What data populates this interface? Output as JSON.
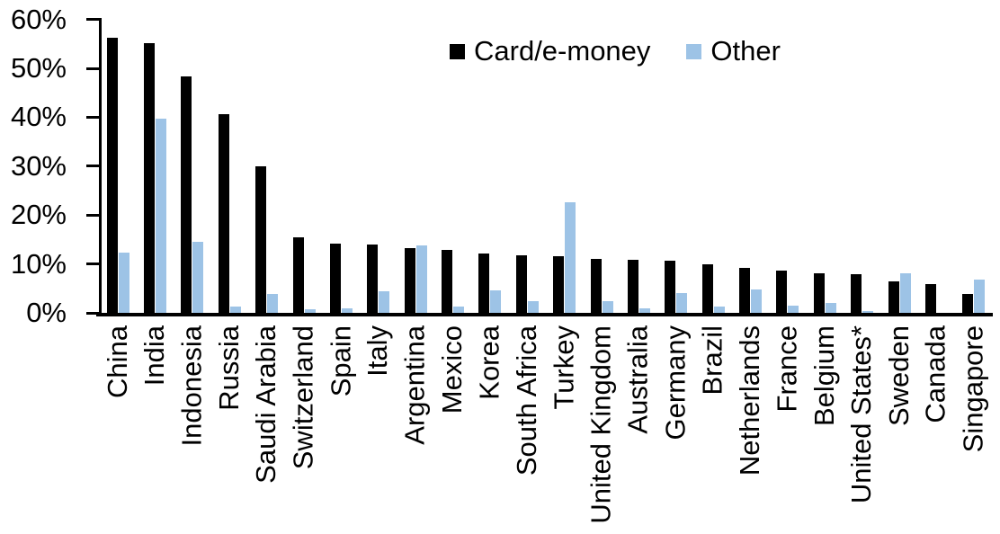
{
  "chart_data": {
    "type": "bar",
    "title": "",
    "xlabel": "",
    "ylabel": "",
    "ylim": [
      0,
      60
    ],
    "ytick_values": [
      0,
      10,
      20,
      30,
      40,
      50,
      60
    ],
    "ytick_labels": [
      "0%",
      "10%",
      "20%",
      "30%",
      "40%",
      "50%",
      "60%"
    ],
    "grid": false,
    "legend_position": "top-center",
    "x_label_rotation_deg": -90,
    "axis_color": "#000000",
    "categories": [
      "China",
      "India",
      "Indonesia",
      "Russia",
      "Saudi Arabia",
      "Switzerland",
      "Spain",
      "Italy",
      "Argentina",
      "Mexico",
      "Korea",
      "South Africa",
      "Turkey",
      "United Kingdom",
      "Australia",
      "Germany",
      "Brazil",
      "Netherlands",
      "France",
      "Belgium",
      "United States*",
      "Sweden",
      "Canada",
      "Singapore"
    ],
    "series": [
      {
        "name": "Card/e-money",
        "color": "#000000",
        "values": [
          56.3,
          55.1,
          48.4,
          40.6,
          29.9,
          15.5,
          14.2,
          13.9,
          13.3,
          12.8,
          12.2,
          11.8,
          11.6,
          11.1,
          10.9,
          10.6,
          9.9,
          9.2,
          8.6,
          8.1,
          7.9,
          6.4,
          5.8,
          3.9
        ]
      },
      {
        "name": "Other",
        "color": "#9DC3E6",
        "values": [
          12.3,
          39.8,
          14.6,
          1.2,
          3.8,
          0.8,
          0.9,
          4.5,
          13.7,
          1.3,
          4.6,
          2.4,
          22.7,
          2.4,
          1.0,
          4.0,
          1.2,
          4.8,
          1.5,
          2.0,
          0.4,
          8.1,
          0,
          6.8
        ]
      }
    ]
  }
}
